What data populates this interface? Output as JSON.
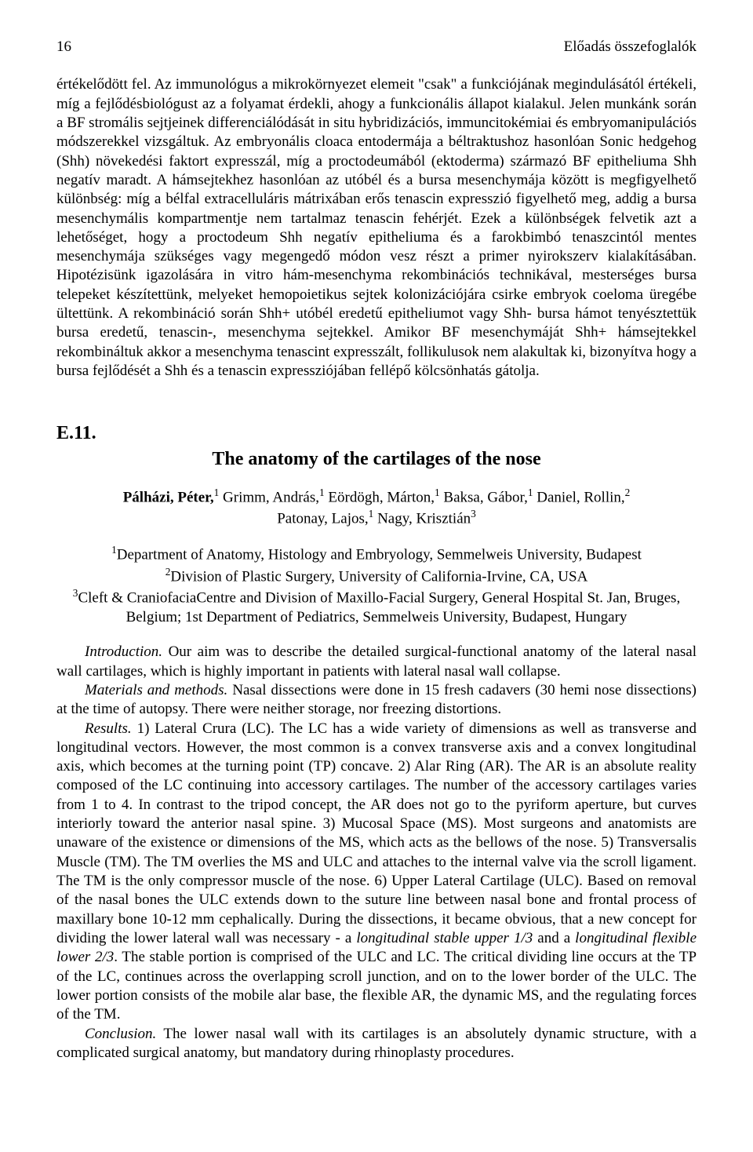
{
  "header": {
    "page_number": "16",
    "running_title": "Előadás összefoglalók"
  },
  "body_paragraph": {
    "text": "értékelődött fel. Az immunológus a mikrokörnyezet elemeit \"csak\" a funkciójának megindulásától értékeli, míg a fejlődésbiológust az a folyamat érdekli, ahogy a funkcionális állapot kialakul. Jelen munkánk során a BF stromális sejtjeinek differenciálódását in situ hybridizációs, immuncitokémiai és embryomanipulációs módszerekkel vizsgáltuk. Az embryonális cloaca entodermája a béltraktushoz hasonlóan Sonic hedgehog (Shh) növekedési faktort expresszál, míg a proctodeumából (ektoderma) származó BF epitheliuma Shh negatív maradt. A hámsejtekhez hasonlóan az utóbél és a bursa mesenchymája között is megfigyelhető különbség: míg a bélfal extracelluláris mátrixában erős tenascin expresszió figyelhető meg, addig a bursa mesenchymális kompartmentje nem tartalmaz tenascin fehérjét. Ezek a különbségek felvetik azt a lehetőséget, hogy a proctodeum Shh negatív epitheliuma és a farokbimbó tenaszcintól mentes mesenchymája szükséges vagy megengedő módon vesz részt a primer nyirokszerv kialakításában. Hipotézisünk igazolására in vitro hám-mesenchyma rekombinációs technikával, mesterséges bursa telepeket készítettünk, melyeket hemopoietikus sejtek kolonizációjára csirke embryok coeloma üregébe ültettünk. A rekombináció során Shh+ utóbél eredetű epitheliumot vagy Shh- bursa hámot tenyésztettük bursa eredetű, tenascin-, mesenchyma sejtekkel. Amikor BF mesenchymáját Shh+ hámsejtekkel rekombináltuk akkor a mesenchyma tenascint expresszált, follikulusok nem alakultak ki, bizonyítva hogy a bursa fejlődését a Shh és a tenascin expressziójában fellépő kölcsönhatás gátolja."
  },
  "abstract": {
    "id": "E.11.",
    "title": "The anatomy of the cartilages of the nose",
    "authors_line1_html": "<b>Pálházi, Péter,</b><sup>1</sup> Grimm, András,<sup>1</sup> Eördögh, Márton,<sup>1</sup> Baksa, Gábor,<sup>1</sup> Daniel, Rollin,<sup>2</sup>",
    "authors_line2_html": "Patonay, Lajos,<sup>1</sup> Nagy, Krisztián<sup>3</sup>",
    "affil1_html": "<sup>1</sup>Department of Anatomy, Histology and Embryology, Semmelweis University, Budapest",
    "affil2_html": "<sup>2</sup>Division of Plastic Surgery, University of California-Irvine, CA, USA",
    "affil3_html": "<sup>3</sup>Cleft & CraniofaciaCentre and Division of Maxillo-Facial Surgery, General Hospital St. Jan, Bruges, Belgium; 1st Department of Pediatrics, Semmelweis University, Budapest, Hungary",
    "paragraphs": [
      {
        "indent": true,
        "html": "<span class=\"italic\">Introduction.</span> Our aim was to describe the detailed surgical-functional anatomy of the lateral nasal wall cartilages, which is highly important in patients with lateral nasal wall collapse."
      },
      {
        "indent": true,
        "html": "<span class=\"italic\">Materials and methods.</span> Nasal dissections were done in 15 fresh cadavers (30 hemi nose dissections) at the time of autopsy. There were neither storage, nor freezing distortions."
      },
      {
        "indent": true,
        "html": "<span class=\"italic\">Results.</span> 1) Lateral Crura (LC). The LC has a wide variety of dimensions as well as transverse and longitudinal vectors. However, the most common is a convex transverse axis and a convex longitudinal axis, which becomes at the turning point (TP) concave. 2) Alar Ring (AR). The AR is an absolute reality composed of the LC continuing into accessory cartilages. The number of the accessory cartilages varies from 1 to 4. In contrast to the tripod concept, the AR does not go to the pyriform aperture, but curves interiorly toward the anterior nasal spine. 3) Mucosal Space (MS). Most surgeons and anatomists are unaware of the existence or dimensions of the MS, which acts as the bellows of the nose. 5) Transversalis Muscle (TM). The TM overlies the MS and ULC and attaches to the internal valve via the scroll ligament. The TM is the only compressor muscle of the nose. 6) Upper Lateral Cartilage (ULC). Based on removal of the nasal bones the ULC extends down to the suture line between nasal bone and frontal process of maxillary bone 10-12 mm cephalically. During the dissections, it became obvious, that a new concept for dividing the lower lateral wall was necessary - a <span class=\"italic\">longitudinal stable upper 1/3</span> and a <span class=\"italic\">longitudinal flexible lower 2/3</span>. The stable portion is comprised of the ULC and LC. The critical dividing line occurs at the TP of the LC, continues across the overlapping scroll junction, and on to the lower border of the ULC. The lower portion consists of the mobile alar base, the flexible AR, the dynamic MS, and the regulating forces of the TM."
      },
      {
        "indent": true,
        "html": "<span class=\"italic\">Conclusion.</span> The lower nasal wall with its cartilages is an absolutely dynamic structure, with a complicated surgical anatomy, but mandatory during rhinoplasty procedures."
      }
    ]
  }
}
